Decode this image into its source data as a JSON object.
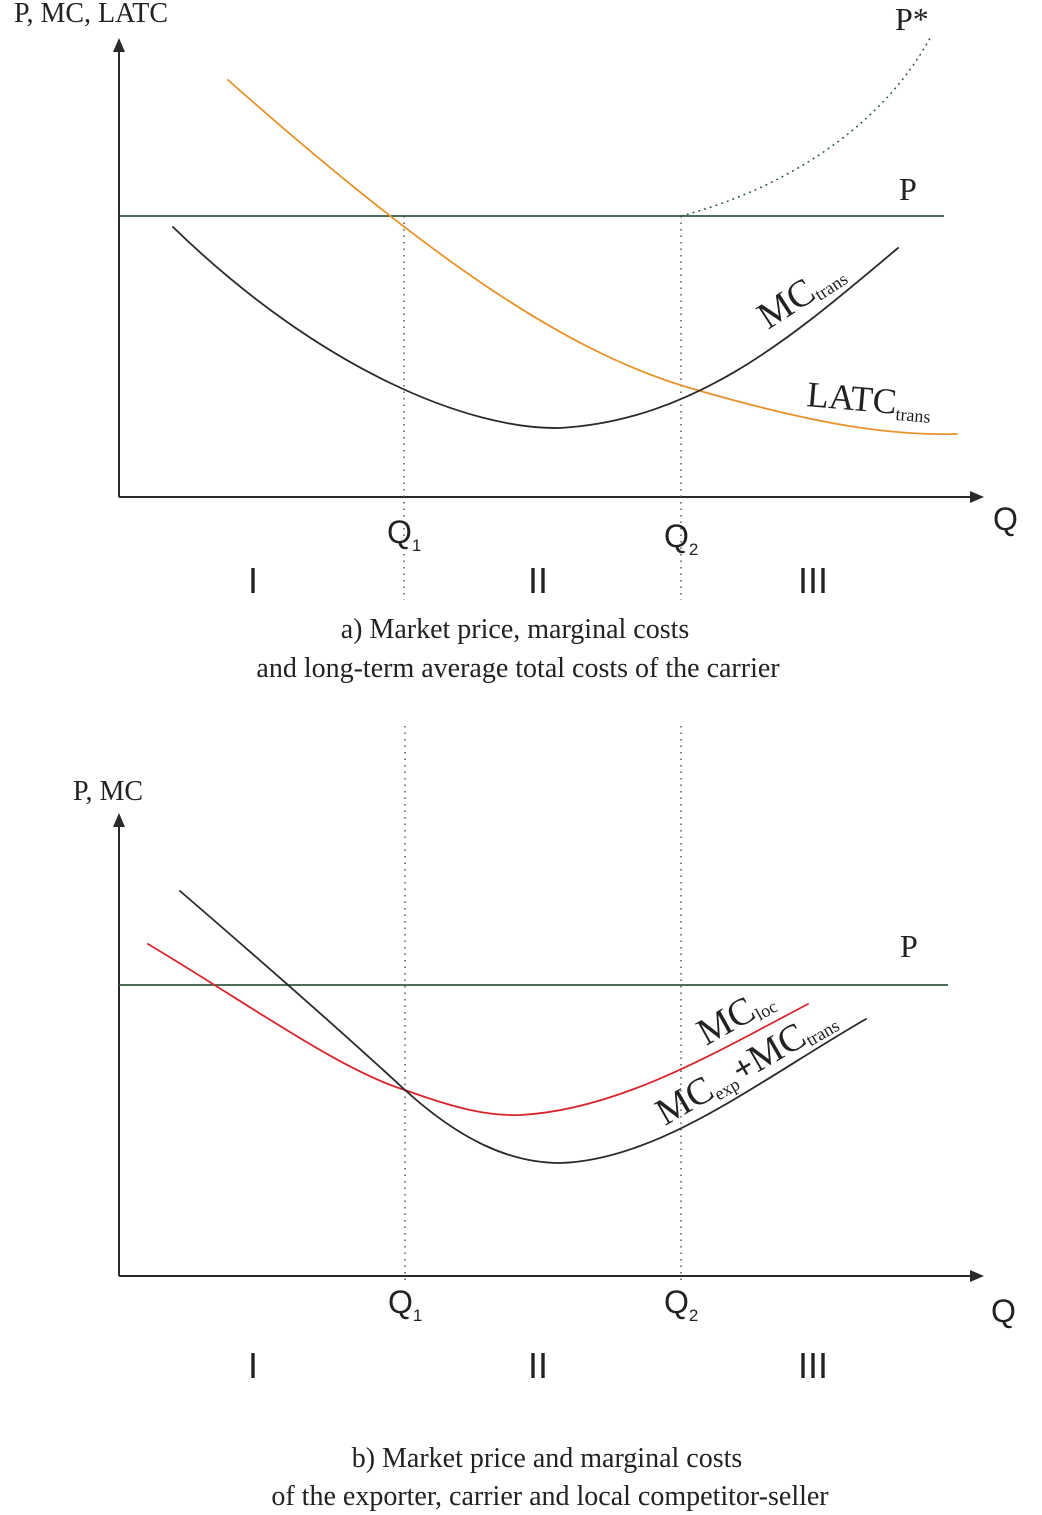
{
  "colors": {
    "axis": "#2a2a2a",
    "price_line": "#2f5a3f",
    "mc_trans": "#2a2a2a",
    "latc_trans": "#e8922a",
    "mc_loc": "#d8262e",
    "mc_sum": "#2a2a2a"
  },
  "top": {
    "y_axis_label": "P, MC, LATC",
    "x_axis_label": "Q",
    "price_label": "P",
    "pstar_label": "P*",
    "q1": {
      "main": "Q",
      "sub": "1"
    },
    "q2": {
      "main": "Q",
      "sub": "2"
    },
    "regions": [
      "I",
      "II",
      "III"
    ],
    "mc_trans": {
      "main": "MC",
      "sub": "trans"
    },
    "latc_trans": {
      "main": "LATC",
      "sub": "trans"
    },
    "caption_line1": "a) Market price, marginal costs",
    "caption_line2": "and long-term average total costs of the carrier"
  },
  "bottom": {
    "y_axis_label": "P, MC",
    "x_axis_label": "Q",
    "price_label": "P",
    "q1": {
      "main": "Q",
      "sub": "1"
    },
    "q2": {
      "main": "Q",
      "sub": "2"
    },
    "regions": [
      "I",
      "II",
      "III"
    ],
    "mc_loc": {
      "main": "MC",
      "sub": "loc"
    },
    "mc_sum": {
      "main1": "MC",
      "sub1": "exp",
      "plus": "+",
      "main2": "MC",
      "sub2": "trans"
    },
    "caption_line1": "b) Market price and marginal costs",
    "caption_line2": "of the exporter, carrier and local competitor-seller"
  }
}
